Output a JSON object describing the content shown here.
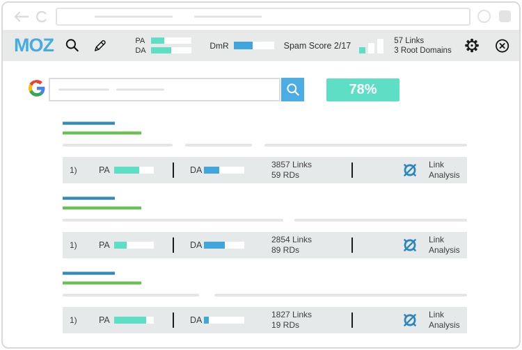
{
  "browser": {
    "window_controls": [
      "minimize-circle",
      "maximize-square"
    ]
  },
  "toolbar": {
    "logo_text": "MOZ",
    "metrics": {
      "pa": {
        "label": "PA",
        "fill_pct": 33
      },
      "da": {
        "label": "DA",
        "fill_pct": 50
      },
      "dmr": {
        "label": "DmR",
        "fill_pct": 48
      }
    },
    "spam_score_label": "Spam Score 2/17",
    "links_summary": {
      "line1": "57 Links",
      "line2": "3 Root Domains"
    }
  },
  "search_page": {
    "score_badge": "78%"
  },
  "results": [
    {
      "index_label": "1)",
      "pa": {
        "label": "PA",
        "fill_pct": 63
      },
      "da": {
        "label": "DA",
        "fill_pct": 38
      },
      "links": "3857 Links",
      "root_domains": "59 RDs",
      "action_label": "Link Analysis"
    },
    {
      "index_label": "1)",
      "pa": {
        "label": "PA",
        "fill_pct": 31
      },
      "da": {
        "label": "DA",
        "fill_pct": 52
      },
      "links": "2854 Links",
      "root_domains": "89 RDs",
      "action_label": "Link Analysis"
    },
    {
      "index_label": "1)",
      "pa": {
        "label": "PA",
        "fill_pct": 81
      },
      "da": {
        "label": "DA",
        "fill_pct": 12
      },
      "links": "1827 Links",
      "root_domains": "19 RDs",
      "action_label": "Link Analysis"
    }
  ],
  "colors": {
    "teal": "#5FDEC6",
    "blue": "#3FA5DA",
    "moz_blue": "#45ACE3",
    "title_blue": "#2F86B8",
    "url_green": "#5FC14C",
    "bar_bg": "#E6E9E9",
    "button_blue": "#4BADE3",
    "icon_blue": "#2C86BC"
  }
}
